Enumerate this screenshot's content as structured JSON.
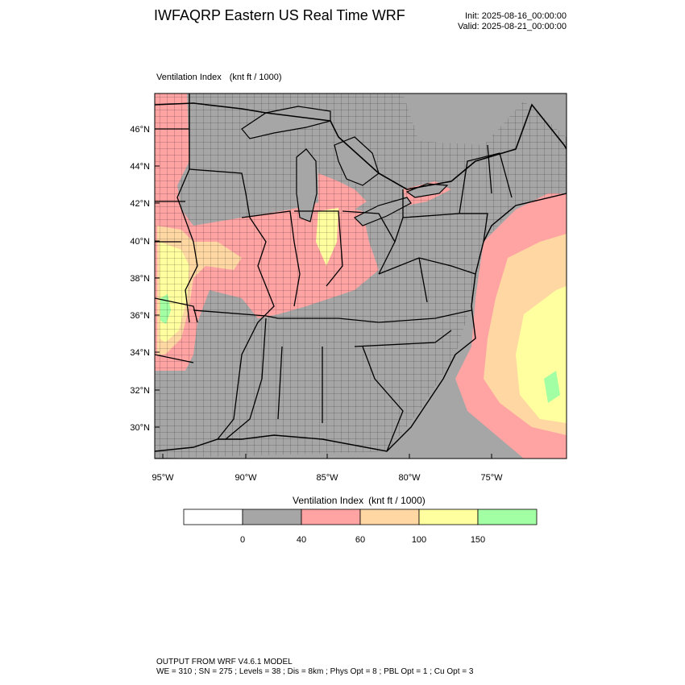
{
  "header": {
    "title": "IWFAQRP Eastern US Real Time WRF",
    "init": "Init: 2025-08-16_00:00:00",
    "valid": "Valid: 2025-08-21_00:00:00"
  },
  "map": {
    "field_label": "Ventilation Index",
    "units": "(knt ft / 1000)",
    "lat_ticks": [
      "46°N",
      "44°N",
      "42°N",
      "40°N",
      "38°N",
      "36°N",
      "34°N",
      "32°N",
      "30°N"
    ],
    "lon_ticks": [
      "95°W",
      "90°W",
      "85°W",
      "80°W",
      "75°W"
    ],
    "colors": {
      "land": "#a6a6a6",
      "ocean": "#a6a6a6",
      "c40_60": "#ffa3a3",
      "c60_100": "#ffd7a3",
      "c100_150": "#ffff9f",
      "c150_plus": "#a3ffa3",
      "border": "#000000"
    }
  },
  "colorbar": {
    "title": "Ventilation Index",
    "units": "(knt ft / 1000)",
    "labels": [
      "0",
      "40",
      "60",
      "100",
      "150"
    ],
    "bins": [
      {
        "color": "#ffffff"
      },
      {
        "color": "#a6a6a6"
      },
      {
        "color": "#ffa3a3"
      },
      {
        "color": "#ffd7a3"
      },
      {
        "color": "#ffff9f"
      },
      {
        "color": "#a3ffa3"
      }
    ]
  },
  "footer": {
    "line1": "OUTPUT FROM WRF V4.6.1 MODEL",
    "line2": "WE = 310 ; SN = 275 ; Levels = 38 ; Dis = 8km ; Phys Opt = 8 ; PBL Opt = 1 ; Cu Opt = 3"
  }
}
